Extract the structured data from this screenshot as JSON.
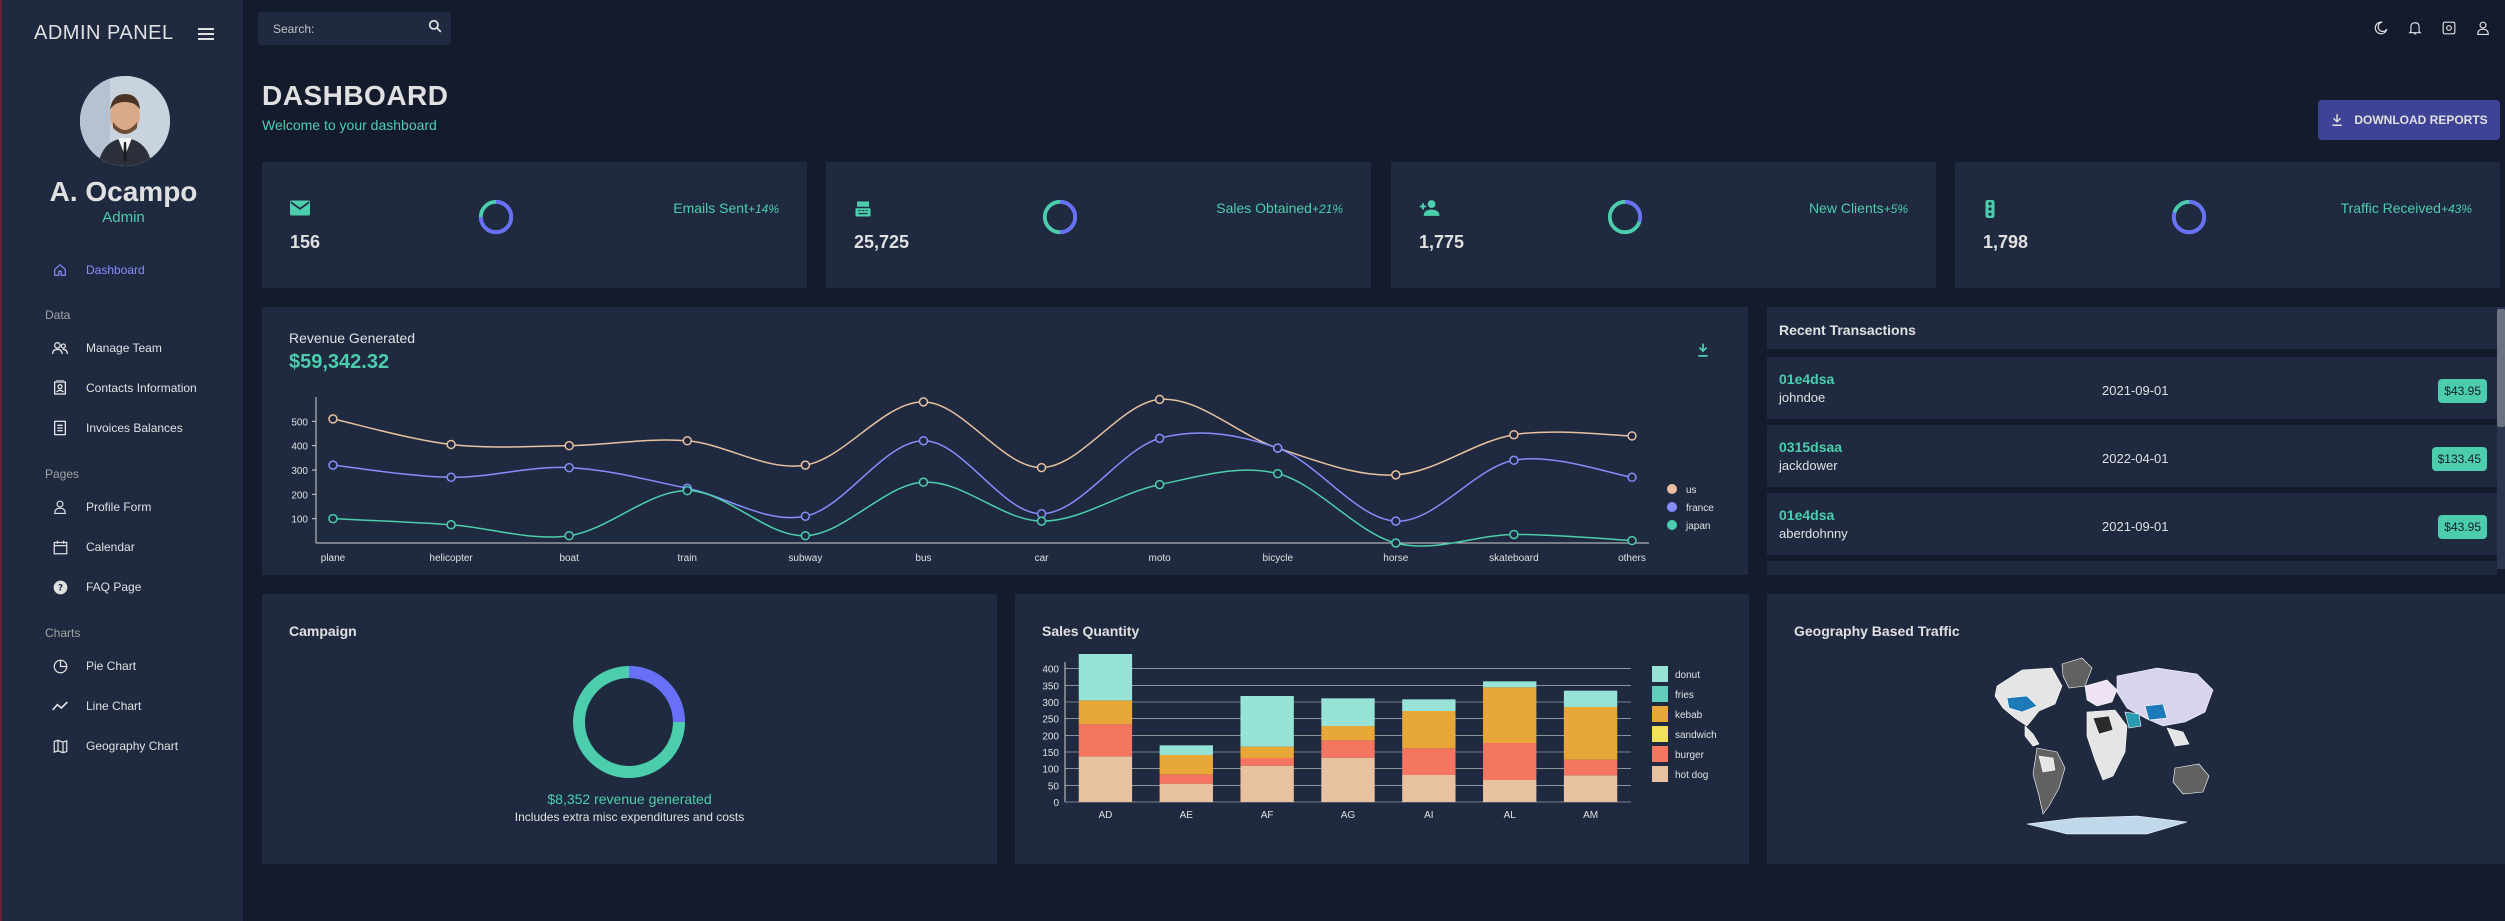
{
  "app": {
    "title": "ADMIN PANEL"
  },
  "user": {
    "name": "A. Ocampo",
    "role": "Admin"
  },
  "nav": {
    "dashboard": "Dashboard",
    "group_data": "Data",
    "manage_team": "Manage Team",
    "contacts": "Contacts Information",
    "invoices": "Invoices Balances",
    "group_pages": "Pages",
    "profile": "Profile Form",
    "calendar": "Calendar",
    "faq": "FAQ Page",
    "group_charts": "Charts",
    "pie": "Pie Chart",
    "line": "Line Chart",
    "geo": "Geography Chart"
  },
  "search": {
    "placeholder": "Search:"
  },
  "header": {
    "title": "DASHBOARD",
    "subtitle": "Welcome to your dashboard",
    "download": "DOWNLOAD REPORTS"
  },
  "stats": [
    {
      "value": "156",
      "label": "Emails Sent",
      "increase": "+14%",
      "progress": 0.75,
      "icon": "email-icon"
    },
    {
      "value": "25,725",
      "label": "Sales Obtained",
      "increase": "+21%",
      "progress": 0.5,
      "icon": "point-of-sale-icon"
    },
    {
      "value": "1,775",
      "label": "New Clients",
      "increase": "+5%",
      "progress": 0.3,
      "icon": "person-add-icon"
    },
    {
      "value": "1,798",
      "label": "Traffic Received",
      "increase": "+43%",
      "progress": 0.8,
      "icon": "traffic-icon"
    }
  ],
  "revenue": {
    "title": "Revenue Generated",
    "amount": "$59,342.32"
  },
  "transactions": {
    "title": "Recent Transactions",
    "items": [
      {
        "id": "01e4dsa",
        "user": "johndoe",
        "date": "2021-09-01",
        "cost": "$43.95"
      },
      {
        "id": "0315dsaa",
        "user": "jackdower",
        "date": "2022-04-01",
        "cost": "$133.45"
      },
      {
        "id": "01e4dsa",
        "user": "aberdohnny",
        "date": "2021-09-01",
        "cost": "$43.95"
      }
    ]
  },
  "campaign": {
    "title": "Campaign",
    "revenue": "$8,352 revenue generated",
    "note": "Includes extra misc expenditures and costs",
    "progress": 0.25
  },
  "sales_quantity": {
    "title": "Sales Quantity"
  },
  "geography": {
    "title": "Geography Based Traffic"
  },
  "colors": {
    "accent": "#4cceac",
    "primary": "#141b2d",
    "panel": "#1f2a40",
    "blue": "#868dfb",
    "button": "#3e4396"
  },
  "chart_data": [
    {
      "type": "line",
      "title": "Revenue Generated",
      "categories": [
        "plane",
        "helicopter",
        "boat",
        "train",
        "subway",
        "bus",
        "car",
        "moto",
        "bicycle",
        "horse",
        "skateboard",
        "others"
      ],
      "ylim": [
        0,
        600
      ],
      "yticks": [
        100,
        200,
        300,
        400,
        500
      ],
      "series": [
        {
          "name": "us",
          "color": "#e8c1a0",
          "values": [
            510,
            405,
            400,
            420,
            320,
            580,
            310,
            590,
            390,
            280,
            445,
            440
          ]
        },
        {
          "name": "france",
          "color": "#868dfb",
          "values": [
            320,
            270,
            310,
            225,
            110,
            420,
            120,
            430,
            390,
            90,
            340,
            270
          ]
        },
        {
          "name": "japan",
          "color": "#4cceac",
          "values": [
            100,
            75,
            30,
            215,
            30,
            250,
            90,
            240,
            285,
            0,
            35,
            10
          ]
        }
      ]
    },
    {
      "type": "bar",
      "stacked": true,
      "title": "Sales Quantity",
      "categories": [
        "AD",
        "AE",
        "AF",
        "AG",
        "AI",
        "AL",
        "AM"
      ],
      "ylim": [
        0,
        420
      ],
      "yticks": [
        0,
        50,
        100,
        150,
        200,
        250,
        300,
        350,
        400
      ],
      "series": [
        {
          "name": "hot dog",
          "color": "#e8c1a0",
          "values": [
            137,
            55,
            109,
            133,
            81,
            66,
            80
          ]
        },
        {
          "name": "burger",
          "color": "#f47560",
          "values": [
            96,
            28,
            23,
            52,
            80,
            111,
            47
          ]
        },
        {
          "name": "sandwich",
          "color": "#f1e15b",
          "values": [
            0,
            0,
            0,
            0,
            0,
            0,
            0
          ]
        },
        {
          "name": "kebab",
          "color": "#e8a838",
          "values": [
            72,
            58,
            34,
            43,
            112,
            167,
            158
          ]
        },
        {
          "name": "fries",
          "color": "#61cdbb",
          "values": [
            0,
            0,
            0,
            0,
            0,
            0,
            0
          ]
        },
        {
          "name": "donut",
          "color": "#97e3d5",
          "values": [
            140,
            29,
            152,
            83,
            35,
            18,
            49
          ]
        }
      ]
    }
  ]
}
